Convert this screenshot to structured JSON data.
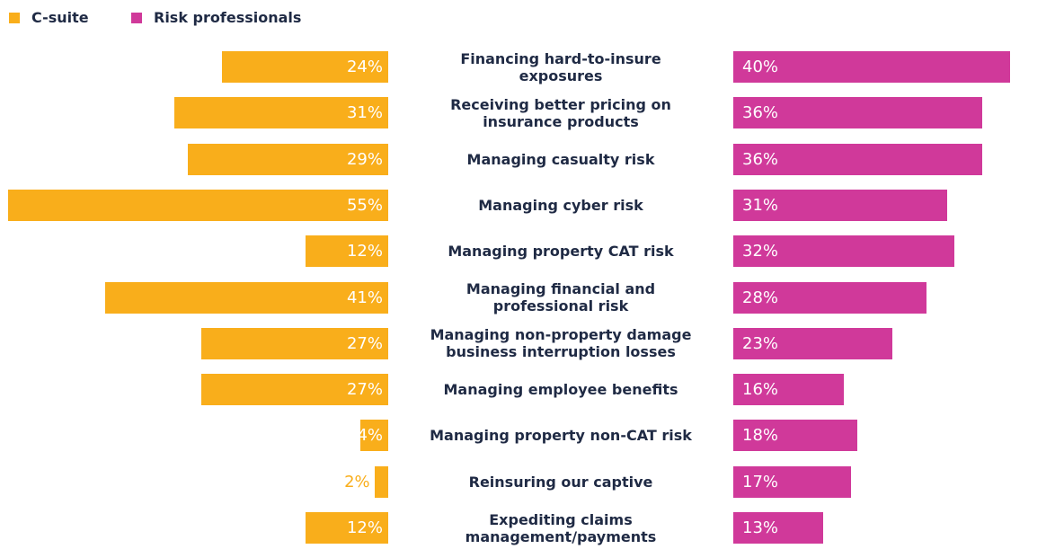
{
  "chart_data": {
    "type": "butterfly-bar",
    "categories": [
      "Financing hard-to-insure exposures",
      "Receiving better pricing on insurance products",
      "Managing casualty risk",
      "Managing cyber risk",
      "Managing property CAT risk",
      "Managing financial and professional risk",
      "Managing non-property damage business interruption losses",
      "Managing employee benefits",
      "Managing property non-CAT risk",
      "Reinsuring our captive",
      "Expediting claims management/payments"
    ],
    "series": [
      {
        "name": "C-suite",
        "color": "#f9ae1b",
        "values": [
          24,
          31,
          29,
          55,
          12,
          41,
          27,
          27,
          4,
          2,
          12
        ],
        "value_labels": [
          "24%",
          "31%",
          "29%",
          "55%",
          "12%",
          "41%",
          "27%",
          "27%",
          "4%",
          "2%",
          "12%"
        ]
      },
      {
        "name": "Risk professionals",
        "color": "#d0399a",
        "values": [
          40,
          36,
          36,
          31,
          32,
          28,
          23,
          16,
          18,
          17,
          13
        ],
        "value_labels": [
          "40%",
          "36%",
          "36%",
          "31%",
          "32%",
          "28%",
          "23%",
          "16%",
          "18%",
          "17%",
          "13%"
        ]
      }
    ]
  }
}
